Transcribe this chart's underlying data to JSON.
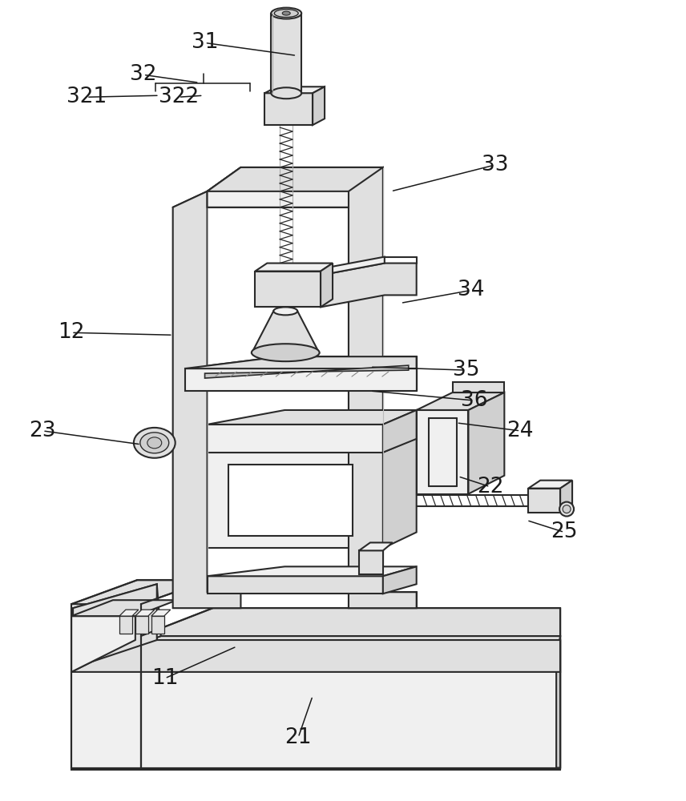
{
  "bg": "#ffffff",
  "lc": "#2a2a2a",
  "lw": 1.5,
  "shade1": "#f0f0f0",
  "shade2": "#e0e0e0",
  "shade3": "#d0d0d0",
  "shade4": "#c8c8c8",
  "annot_fs": 19,
  "annot_color": "#1a1a1a",
  "annotations": [
    [
      "31",
      255,
      52,
      370,
      68
    ],
    [
      "32",
      178,
      92,
      248,
      102
    ],
    [
      "321",
      107,
      120,
      198,
      118
    ],
    [
      "322",
      222,
      120,
      253,
      118
    ],
    [
      "33",
      618,
      205,
      488,
      238
    ],
    [
      "12",
      88,
      415,
      215,
      418
    ],
    [
      "34",
      588,
      362,
      500,
      378
    ],
    [
      "35",
      582,
      462,
      462,
      458
    ],
    [
      "36",
      592,
      500,
      462,
      488
    ],
    [
      "23",
      52,
      538,
      175,
      555
    ],
    [
      "24",
      650,
      538,
      570,
      528
    ],
    [
      "22",
      612,
      608,
      572,
      595
    ],
    [
      "11",
      205,
      848,
      295,
      808
    ],
    [
      "21",
      372,
      922,
      390,
      870
    ],
    [
      "25",
      705,
      665,
      658,
      650
    ]
  ]
}
